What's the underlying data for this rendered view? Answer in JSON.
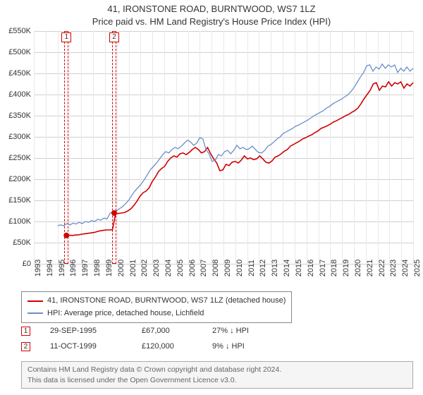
{
  "title": {
    "line1": "41, IRONSTONE ROAD, BURNTWOOD, WS7 1LZ",
    "line2": "Price paid vs. HM Land Registry's House Price Index (HPI)",
    "fontsize": 13
  },
  "chart": {
    "type": "line",
    "background_color": "#ffffff",
    "grid_color": "#d0d0d0",
    "vgrid_color": "#e8e8e8",
    "ylim": [
      0,
      550000
    ],
    "yticks": [
      0,
      50000,
      100000,
      150000,
      200000,
      250000,
      300000,
      350000,
      400000,
      450000,
      500000,
      550000
    ],
    "ytick_labels": [
      "£0",
      "£50K",
      "£100K",
      "£150K",
      "£200K",
      "£250K",
      "£300K",
      "£350K",
      "£400K",
      "£450K",
      "£500K",
      "£550K"
    ],
    "xlim": [
      1993,
      2025
    ],
    "xticks": [
      1993,
      1994,
      1995,
      1996,
      1997,
      1998,
      1999,
      2000,
      2001,
      2002,
      2003,
      2004,
      2005,
      2006,
      2007,
      2008,
      2009,
      2010,
      2011,
      2012,
      2013,
      2014,
      2015,
      2016,
      2017,
      2018,
      2019,
      2020,
      2021,
      2022,
      2023,
      2024,
      2025
    ],
    "tick_fontsize": 11,
    "series": [
      {
        "name": "41, IRONSTONE ROAD, BURNTWOOD, WS7 1LZ (detached house)",
        "color": "#d00000",
        "width": 1.6,
        "start_year": 1995.75,
        "data": [
          67000,
          67500,
          67000,
          68000,
          68500,
          70000,
          71000,
          72000,
          73000,
          74000,
          76000,
          78000,
          79000,
          80000,
          80000,
          80500,
          118000,
          119000,
          120000,
          121500,
          125000,
          130000,
          138000,
          148000,
          160000,
          168000,
          172000,
          180000,
          195000,
          205000,
          218000,
          225000,
          230000,
          242000,
          250000,
          255000,
          252000,
          260000,
          262000,
          258000,
          263000,
          270000,
          275000,
          270000,
          262000,
          265000,
          275000,
          260000,
          248000,
          238000,
          220000,
          222000,
          235000,
          232000,
          240000,
          242000,
          238000,
          245000,
          255000,
          248000,
          250000,
          246000,
          248000,
          255000,
          248000,
          240000,
          238000,
          243000,
          252000,
          255000,
          260000,
          266000,
          270000,
          278000,
          282000,
          286000,
          290000,
          295000,
          298000,
          302000,
          305000,
          310000,
          314000,
          320000,
          323000,
          326000,
          330000,
          335000,
          338000,
          342000,
          346000,
          350000,
          353000,
          358000,
          362000,
          368000,
          378000,
          390000,
          400000,
          410000,
          425000,
          428000,
          410000,
          420000,
          418000,
          430000,
          420000,
          428000,
          425000,
          430000,
          415000,
          425000,
          420000,
          428000
        ]
      },
      {
        "name": "HPI: Average price, detached house, Lichfield",
        "color": "#6a8fc7",
        "width": 1.3,
        "start_year": 1995.0,
        "data": [
          90000,
          92000,
          90000,
          95000,
          92000,
          96000,
          94000,
          98000,
          95000,
          100000,
          98000,
          102000,
          100000,
          105000,
          103000,
          108000,
          106000,
          120000,
          122000,
          125000,
          130000,
          135000,
          142000,
          150000,
          162000,
          172000,
          180000,
          188000,
          198000,
          210000,
          222000,
          230000,
          238000,
          248000,
          258000,
          265000,
          262000,
          270000,
          275000,
          272000,
          278000,
          285000,
          292000,
          288000,
          280000,
          285000,
          298000,
          295000,
          270000,
          260000,
          242000,
          245000,
          258000,
          255000,
          265000,
          268000,
          260000,
          268000,
          280000,
          272000,
          275000,
          270000,
          272000,
          278000,
          270000,
          263000,
          262000,
          268000,
          278000,
          282000,
          288000,
          295000,
          300000,
          308000,
          312000,
          316000,
          320000,
          325000,
          328000,
          332000,
          336000,
          340000,
          345000,
          350000,
          354000,
          358000,
          362000,
          368000,
          372000,
          378000,
          382000,
          386000,
          390000,
          395000,
          400000,
          408000,
          418000,
          430000,
          442000,
          452000,
          468000,
          470000,
          455000,
          465000,
          460000,
          472000,
          462000,
          470000,
          465000,
          470000,
          452000,
          462000,
          455000,
          465000,
          455000,
          462000
        ]
      }
    ],
    "event_bands": [
      {
        "label": "1",
        "year": 1995.75,
        "price": 67000
      },
      {
        "label": "2",
        "year": 1999.78,
        "price": 120000
      }
    ],
    "marker_radius": 4,
    "marker_color": "#d00000"
  },
  "legend": {
    "items": [
      {
        "color": "#d00000",
        "label": "41, IRONSTONE ROAD, BURNTWOOD, WS7 1LZ (detached house)"
      },
      {
        "color": "#6a8fc7",
        "label": "HPI: Average price, detached house, Lichfield"
      }
    ]
  },
  "events_table": {
    "rows": [
      {
        "n": "1",
        "date": "29-SEP-1995",
        "price": "£67,000",
        "diff": "27%  ↓  HPI"
      },
      {
        "n": "2",
        "date": "11-OCT-1999",
        "price": "£120,000",
        "diff": "9%  ↓  HPI"
      }
    ]
  },
  "footer": {
    "line1": "Contains HM Land Registry data © Crown copyright and database right 2024.",
    "line2": "This data is licensed under the Open Government Licence v3.0."
  }
}
